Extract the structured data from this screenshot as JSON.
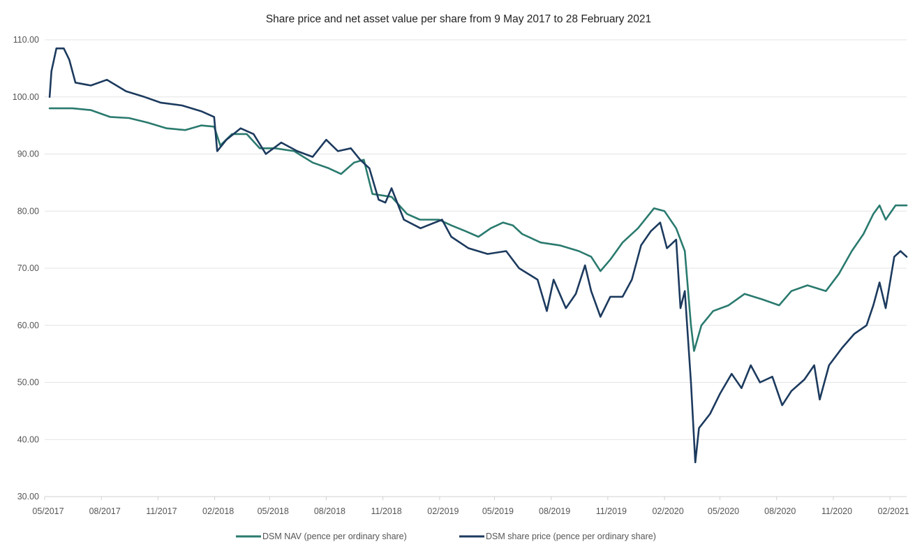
{
  "chart_data": {
    "type": "line",
    "title": "Share price and net asset value per share from 9 May 2017 to 28 February 2021",
    "xlabel": "",
    "ylabel": "",
    "x_range": [
      "2017-05-09",
      "2021-02-28"
    ],
    "ylim": [
      30,
      110
    ],
    "y_ticks": [
      30,
      40,
      50,
      60,
      70,
      80,
      90,
      100,
      110
    ],
    "y_tick_labels": [
      "30.00",
      "40.00",
      "50.00",
      "60.00",
      "70.00",
      "80.00",
      "90.00",
      "100.00",
      "110.00"
    ],
    "x_ticks": [
      "2017-05-01",
      "2017-08-01",
      "2017-11-01",
      "2018-02-01",
      "2018-05-01",
      "2018-08-01",
      "2018-11-01",
      "2019-02-01",
      "2019-05-01",
      "2019-08-01",
      "2019-11-01",
      "2020-02-01",
      "2020-05-01",
      "2020-08-01",
      "2020-11-01",
      "2021-02-01"
    ],
    "x_tick_labels": [
      "05/2017",
      "08/2017",
      "11/2017",
      "02/2018",
      "05/2018",
      "08/2018",
      "11/2018",
      "02/2019",
      "05/2019",
      "08/2019",
      "11/2019",
      "02/2020",
      "05/2020",
      "08/2020",
      "11/2020",
      "02/2021"
    ],
    "grid": true,
    "legend_position": "bottom",
    "series": [
      {
        "name": "DSM NAV (pence per ordinary share)",
        "color": "#2a7a6e",
        "points": [
          [
            "2017-05-09",
            98.0
          ],
          [
            "2017-06-15",
            98.0
          ],
          [
            "2017-07-15",
            97.7
          ],
          [
            "2017-08-15",
            96.5
          ],
          [
            "2017-09-15",
            96.3
          ],
          [
            "2017-10-15",
            95.5
          ],
          [
            "2017-11-15",
            94.5
          ],
          [
            "2017-12-15",
            94.2
          ],
          [
            "2018-01-10",
            95.0
          ],
          [
            "2018-01-31",
            94.8
          ],
          [
            "2018-02-10",
            91.5
          ],
          [
            "2018-03-01",
            93.5
          ],
          [
            "2018-03-25",
            93.5
          ],
          [
            "2018-04-15",
            91.0
          ],
          [
            "2018-05-10",
            91.0
          ],
          [
            "2018-06-10",
            90.5
          ],
          [
            "2018-07-10",
            88.5
          ],
          [
            "2018-08-05",
            87.5
          ],
          [
            "2018-08-25",
            86.5
          ],
          [
            "2018-09-15",
            88.5
          ],
          [
            "2018-10-01",
            89.0
          ],
          [
            "2018-10-15",
            83.0
          ],
          [
            "2018-11-15",
            82.5
          ],
          [
            "2018-12-10",
            79.5
          ],
          [
            "2018-12-31",
            78.5
          ],
          [
            "2019-01-31",
            78.5
          ],
          [
            "2019-02-20",
            77.5
          ],
          [
            "2019-03-15",
            76.5
          ],
          [
            "2019-04-05",
            75.5
          ],
          [
            "2019-04-25",
            77.0
          ],
          [
            "2019-05-15",
            78.0
          ],
          [
            "2019-05-31",
            77.5
          ],
          [
            "2019-06-15",
            76.0
          ],
          [
            "2019-07-15",
            74.5
          ],
          [
            "2019-08-15",
            74.0
          ],
          [
            "2019-09-15",
            73.0
          ],
          [
            "2019-10-05",
            72.0
          ],
          [
            "2019-10-20",
            69.5
          ],
          [
            "2019-11-05",
            71.5
          ],
          [
            "2019-11-25",
            74.5
          ],
          [
            "2019-12-20",
            77.0
          ],
          [
            "2020-01-15",
            80.5
          ],
          [
            "2020-02-01",
            80.0
          ],
          [
            "2020-02-20",
            77.0
          ],
          [
            "2020-03-05",
            73.0
          ],
          [
            "2020-03-15",
            60.0
          ],
          [
            "2020-03-20",
            55.5
          ],
          [
            "2020-04-01",
            60.0
          ],
          [
            "2020-04-20",
            62.5
          ],
          [
            "2020-05-15",
            63.5
          ],
          [
            "2020-06-10",
            65.5
          ],
          [
            "2020-07-10",
            64.5
          ],
          [
            "2020-08-05",
            63.5
          ],
          [
            "2020-08-25",
            66.0
          ],
          [
            "2020-09-20",
            67.0
          ],
          [
            "2020-10-20",
            66.0
          ],
          [
            "2020-11-10",
            69.0
          ],
          [
            "2020-12-01",
            73.0
          ],
          [
            "2020-12-20",
            76.0
          ],
          [
            "2021-01-05",
            79.5
          ],
          [
            "2021-01-15",
            81.0
          ],
          [
            "2021-01-25",
            78.5
          ],
          [
            "2021-02-10",
            81.0
          ],
          [
            "2021-02-28",
            81.0
          ]
        ]
      },
      {
        "name": "DSM share price (pence per ordinary share)",
        "color": "#1c3a5e",
        "points": [
          [
            "2017-05-09",
            100.0
          ],
          [
            "2017-05-12",
            104.5
          ],
          [
            "2017-05-20",
            108.5
          ],
          [
            "2017-06-01",
            108.5
          ],
          [
            "2017-06-10",
            106.5
          ],
          [
            "2017-06-20",
            102.5
          ],
          [
            "2017-07-15",
            102.0
          ],
          [
            "2017-08-10",
            103.0
          ],
          [
            "2017-09-10",
            101.0
          ],
          [
            "2017-10-10",
            100.0
          ],
          [
            "2017-11-05",
            99.0
          ],
          [
            "2017-12-10",
            98.5
          ],
          [
            "2018-01-10",
            97.5
          ],
          [
            "2018-01-31",
            96.5
          ],
          [
            "2018-02-05",
            90.5
          ],
          [
            "2018-02-20",
            92.5
          ],
          [
            "2018-03-15",
            94.5
          ],
          [
            "2018-04-05",
            93.5
          ],
          [
            "2018-04-25",
            90.0
          ],
          [
            "2018-05-20",
            92.0
          ],
          [
            "2018-06-15",
            90.5
          ],
          [
            "2018-07-10",
            89.5
          ],
          [
            "2018-08-01",
            92.5
          ],
          [
            "2018-08-20",
            90.5
          ],
          [
            "2018-09-10",
            91.0
          ],
          [
            "2018-09-25",
            89.0
          ],
          [
            "2018-10-10",
            87.5
          ],
          [
            "2018-10-25",
            82.0
          ],
          [
            "2018-11-05",
            81.5
          ],
          [
            "2018-11-15",
            84.0
          ],
          [
            "2018-12-05",
            78.5
          ],
          [
            "2019-01-01",
            77.0
          ],
          [
            "2019-02-05",
            78.5
          ],
          [
            "2019-02-20",
            75.5
          ],
          [
            "2019-03-20",
            73.5
          ],
          [
            "2019-04-20",
            72.5
          ],
          [
            "2019-05-20",
            73.0
          ],
          [
            "2019-06-10",
            70.0
          ],
          [
            "2019-07-10",
            68.0
          ],
          [
            "2019-07-25",
            62.5
          ],
          [
            "2019-08-05",
            68.0
          ],
          [
            "2019-08-25",
            63.0
          ],
          [
            "2019-09-10",
            65.5
          ],
          [
            "2019-09-25",
            70.5
          ],
          [
            "2019-10-05",
            66.0
          ],
          [
            "2019-10-20",
            61.5
          ],
          [
            "2019-11-05",
            65.0
          ],
          [
            "2019-11-25",
            65.0
          ],
          [
            "2019-12-10",
            68.0
          ],
          [
            "2019-12-25",
            74.0
          ],
          [
            "2020-01-10",
            76.5
          ],
          [
            "2020-01-25",
            78.0
          ],
          [
            "2020-02-05",
            73.5
          ],
          [
            "2020-02-20",
            75.0
          ],
          [
            "2020-02-27",
            63.0
          ],
          [
            "2020-03-05",
            66.0
          ],
          [
            "2020-03-15",
            50.0
          ],
          [
            "2020-03-22",
            36.0
          ],
          [
            "2020-03-28",
            42.0
          ],
          [
            "2020-04-15",
            44.5
          ],
          [
            "2020-05-01",
            48.0
          ],
          [
            "2020-05-20",
            51.5
          ],
          [
            "2020-06-05",
            49.0
          ],
          [
            "2020-06-20",
            53.0
          ],
          [
            "2020-07-05",
            50.0
          ],
          [
            "2020-07-25",
            51.0
          ],
          [
            "2020-08-10",
            46.0
          ],
          [
            "2020-08-25",
            48.5
          ],
          [
            "2020-09-15",
            50.5
          ],
          [
            "2020-10-01",
            53.0
          ],
          [
            "2020-10-10",
            47.0
          ],
          [
            "2020-10-25",
            53.0
          ],
          [
            "2020-11-15",
            56.0
          ],
          [
            "2020-12-05",
            58.5
          ],
          [
            "2020-12-25",
            60.0
          ],
          [
            "2021-01-05",
            63.5
          ],
          [
            "2021-01-15",
            67.5
          ],
          [
            "2021-01-25",
            63.0
          ],
          [
            "2021-02-08",
            72.0
          ],
          [
            "2021-02-18",
            73.0
          ],
          [
            "2021-02-28",
            72.0
          ]
        ]
      }
    ]
  }
}
